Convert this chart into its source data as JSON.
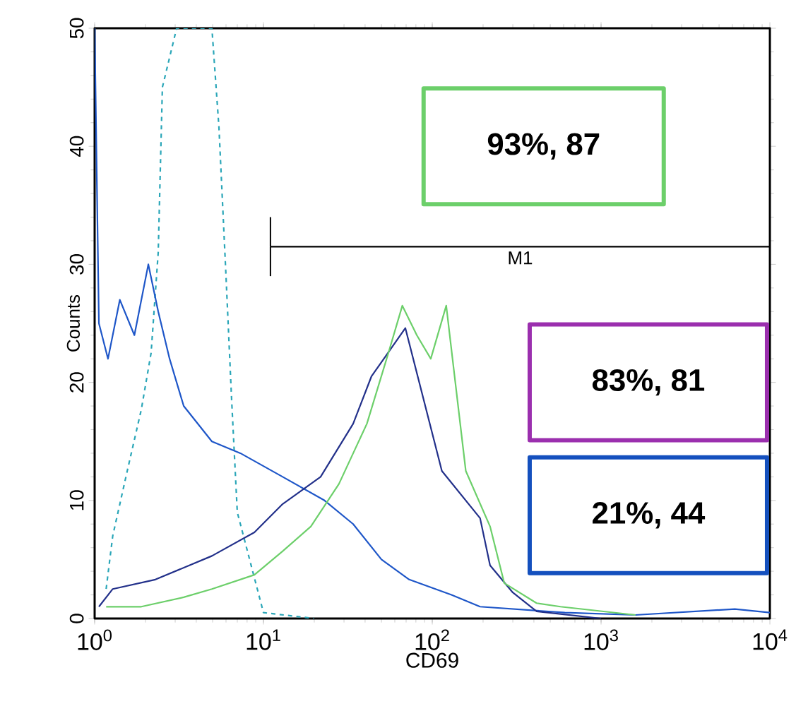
{
  "chart_data": {
    "type": "line",
    "xlabel": "CD69",
    "ylabel": "Counts",
    "log": "x",
    "grid": false,
    "xlim": [
      1,
      10000
    ],
    "ylim": [
      0,
      50
    ],
    "xticks": [
      {
        "value": 1,
        "label": "10$^{0}$"
      },
      {
        "value": 10,
        "label": "10$^{1}$"
      },
      {
        "value": 100,
        "label": "10$^{2}$"
      },
      {
        "value": 1000,
        "label": "10$^{3}$"
      },
      {
        "value": 10000,
        "label": "10$^{4}$"
      }
    ],
    "yticks": [
      0,
      10,
      20,
      30,
      40,
      50
    ],
    "series": [
      {
        "color": "#2aa6b8",
        "line_style": "dashed",
        "x": [
          1.17,
          1.28,
          1.56,
          1.89,
          2.16,
          2.38,
          2.52,
          3.06,
          4.95,
          5.45,
          6.0,
          6.48,
          7.0,
          10,
          20
        ],
        "values": [
          2.5,
          7,
          12.5,
          17.7,
          22.5,
          31,
          45,
          50,
          50,
          41.6,
          29,
          18.5,
          9,
          0.5,
          0
        ]
      },
      {
        "color": "#1e56c8",
        "x": [
          1,
          1.06,
          1.2,
          1.41,
          1.72,
          2.08,
          2.38,
          2.78,
          3.37,
          4.95,
          7.3,
          13,
          23,
          34,
          50,
          73,
          130,
          192,
          610,
          1600,
          6200,
          10000
        ],
        "values": [
          50,
          25,
          22,
          27,
          24,
          30,
          26,
          22,
          18,
          15,
          14,
          12,
          10,
          8,
          5,
          3.3,
          2,
          1,
          0.5,
          0.3,
          0.8,
          0.5
        ]
      },
      {
        "color": "#22308a",
        "x": [
          1.06,
          1.28,
          2.29,
          4.95,
          8.84,
          13,
          21.8,
          34,
          43.6,
          69.3,
          114,
          192,
          220,
          300,
          415,
          1000
        ],
        "values": [
          1,
          2.5,
          3.3,
          5.3,
          7.3,
          9.7,
          12,
          16.5,
          20.5,
          24.6,
          12.5,
          8.5,
          4.5,
          2.2,
          0.6,
          0
        ]
      },
      {
        "color": "#6ccf6a",
        "x": [
          1.17,
          1.89,
          3.37,
          4.95,
          8.84,
          13,
          19.1,
          28,
          41,
          55,
          66.5,
          81,
          98,
          121,
          158,
          220,
          267,
          415,
          575,
          1600
        ],
        "values": [
          1,
          1,
          1.8,
          2.5,
          3.7,
          5.7,
          7.8,
          11.4,
          16.5,
          22.5,
          26.5,
          24,
          22,
          26.5,
          12.5,
          7.8,
          3,
          1.3,
          1,
          0.3
        ]
      },
      {
        "name": "M1",
        "color": "#000000",
        "x": [
          11,
          10000
        ],
        "values": [
          31.5,
          31.5
        ],
        "errors": [
          [
            29,
            34
          ],
          null
        ]
      }
    ],
    "annotations": [
      "93%, 87",
      "83%, 81",
      "21%, 44"
    ]
  }
}
